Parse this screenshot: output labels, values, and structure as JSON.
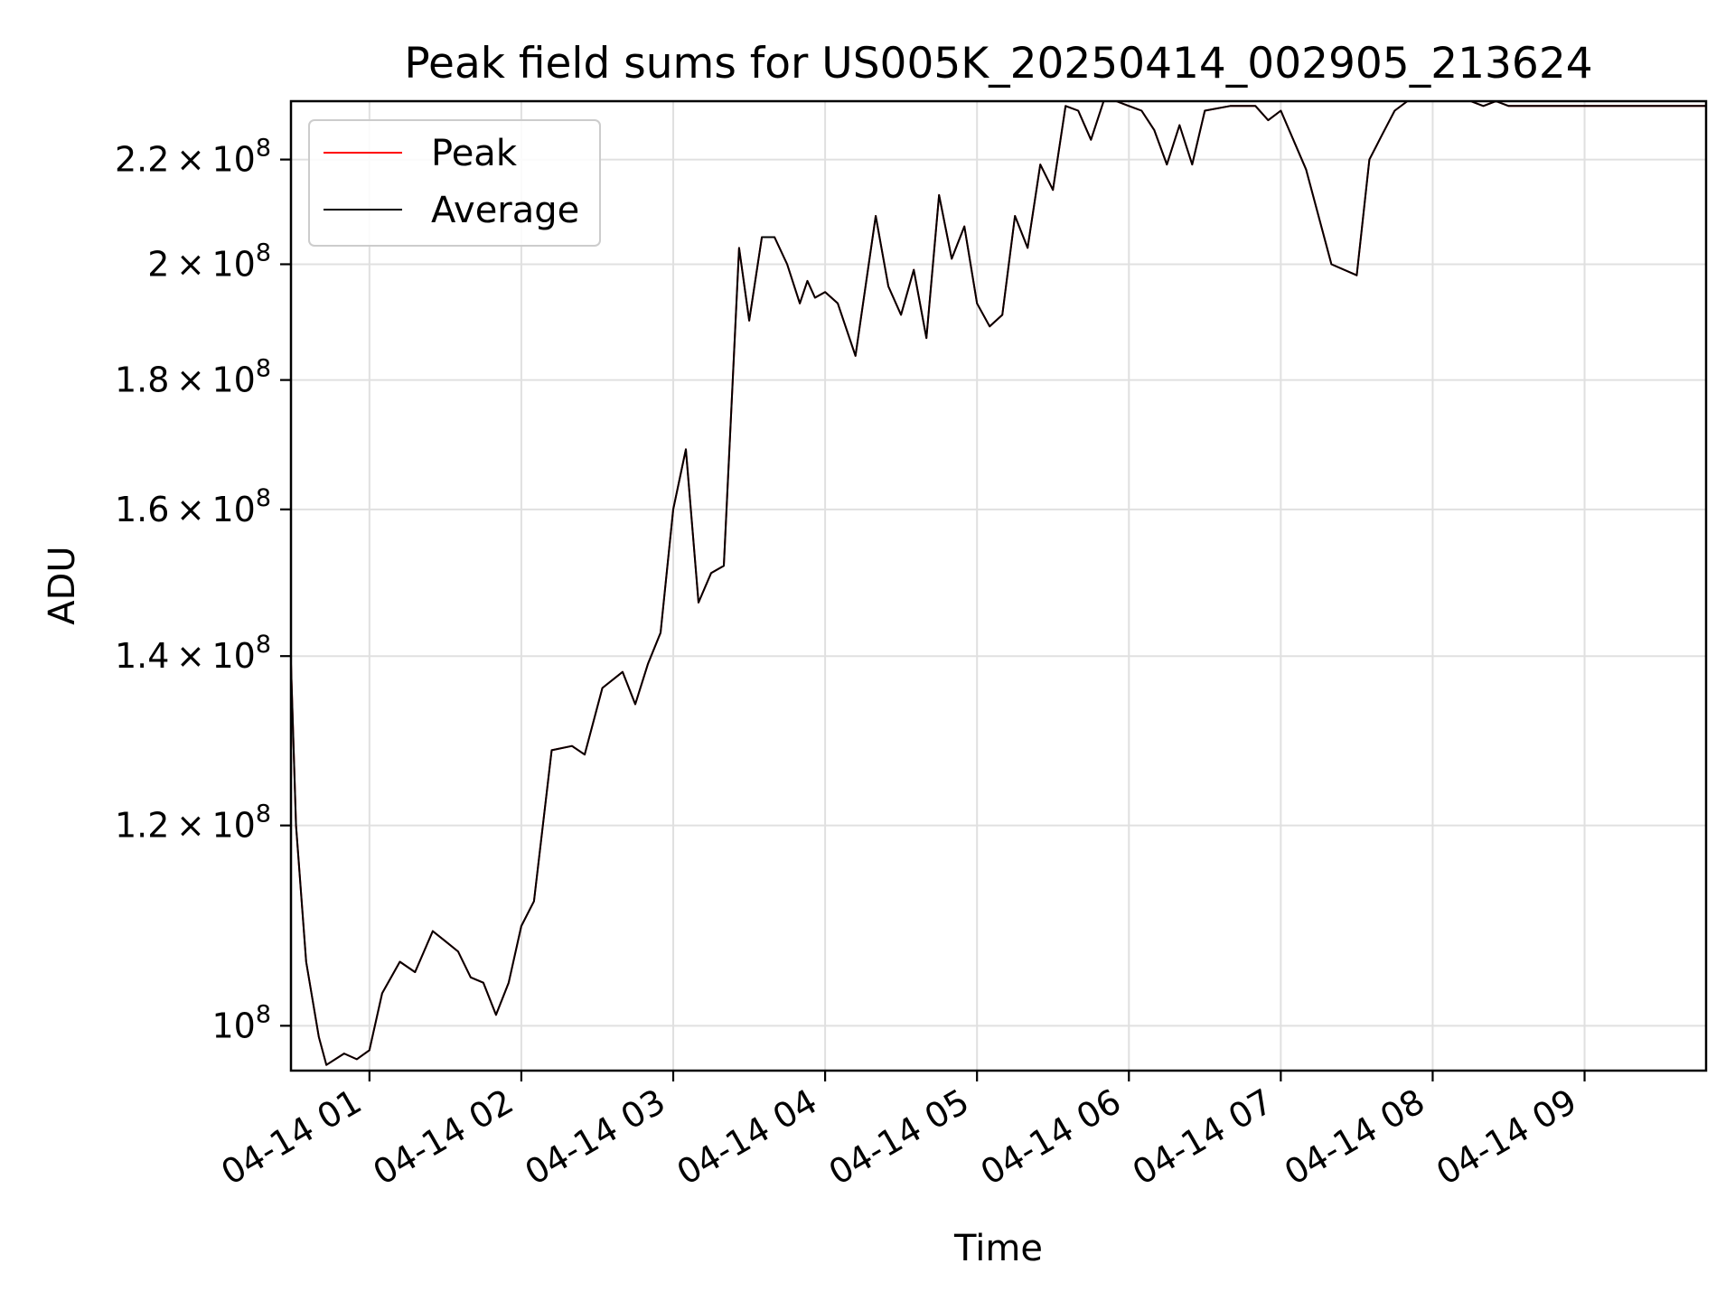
{
  "chart_data": {
    "type": "line",
    "title": "Peak field sums for US005K_20250414_002905_213624",
    "xlabel": "Time",
    "ylabel": "ADU",
    "y_scale": "log",
    "grid": true,
    "legend_position": "top-left",
    "x_range": [
      "04-14 00:29",
      "04-14 09:48"
    ],
    "ylim": [
      96000000,
      232000000
    ],
    "x_ticks": [
      {
        "time": "04-14 01:00",
        "label": "04-14 01"
      },
      {
        "time": "04-14 02:00",
        "label": "04-14 02"
      },
      {
        "time": "04-14 03:00",
        "label": "04-14 03"
      },
      {
        "time": "04-14 04:00",
        "label": "04-14 04"
      },
      {
        "time": "04-14 05:00",
        "label": "04-14 05"
      },
      {
        "time": "04-14 06:00",
        "label": "04-14 06"
      },
      {
        "time": "04-14 07:00",
        "label": "04-14 07"
      },
      {
        "time": "04-14 08:00",
        "label": "04-14 08"
      },
      {
        "time": "04-14 09:00",
        "label": "04-14 09"
      }
    ],
    "y_ticks": [
      {
        "value": 100000000,
        "mant": "",
        "exp": "8"
      },
      {
        "value": 120000000,
        "mant": "1.2",
        "exp": "8"
      },
      {
        "value": 140000000,
        "mant": "1.4",
        "exp": "8"
      },
      {
        "value": 160000000,
        "mant": "1.6",
        "exp": "8"
      },
      {
        "value": 180000000,
        "mant": "1.8",
        "exp": "8"
      },
      {
        "value": 200000000,
        "mant": "2",
        "exp": "8"
      },
      {
        "value": 220000000,
        "mant": "2.2",
        "exp": "8"
      }
    ],
    "times": [
      "04-14 00:29",
      "04-14 00:31",
      "04-14 00:35",
      "04-14 00:40",
      "04-14 00:43",
      "04-14 00:50",
      "04-14 00:55",
      "04-14 01:00",
      "04-14 01:05",
      "04-14 01:12",
      "04-14 01:18",
      "04-14 01:25",
      "04-14 01:30",
      "04-14 01:35",
      "04-14 01:40",
      "04-14 01:45",
      "04-14 01:50",
      "04-14 01:55",
      "04-14 02:00",
      "04-14 02:05",
      "04-14 02:12",
      "04-14 02:20",
      "04-14 02:25",
      "04-14 02:32",
      "04-14 02:40",
      "04-14 02:45",
      "04-14 02:50",
      "04-14 02:55",
      "04-14 03:00",
      "04-14 03:05",
      "04-14 03:10",
      "04-14 03:15",
      "04-14 03:20",
      "04-14 03:26",
      "04-14 03:30",
      "04-14 03:35",
      "04-14 03:40",
      "04-14 03:45",
      "04-14 03:50",
      "04-14 03:53",
      "04-14 03:56",
      "04-14 04:00",
      "04-14 04:05",
      "04-14 04:12",
      "04-14 04:20",
      "04-14 04:25",
      "04-14 04:30",
      "04-14 04:35",
      "04-14 04:40",
      "04-14 04:45",
      "04-14 04:50",
      "04-14 04:55",
      "04-14 05:00",
      "04-14 05:05",
      "04-14 05:10",
      "04-14 05:15",
      "04-14 05:20",
      "04-14 05:25",
      "04-14 05:30",
      "04-14 05:35",
      "04-14 05:40",
      "04-14 05:45",
      "04-14 05:50",
      "04-14 05:55",
      "04-14 06:00",
      "04-14 06:05",
      "04-14 06:10",
      "04-14 06:15",
      "04-14 06:20",
      "04-14 06:25",
      "04-14 06:30",
      "04-14 06:40",
      "04-14 06:50",
      "04-14 06:55",
      "04-14 07:00",
      "04-14 07:10",
      "04-14 07:20",
      "04-14 07:30",
      "04-14 07:35",
      "04-14 07:40",
      "04-14 07:45",
      "04-14 07:50",
      "04-14 07:55",
      "04-14 08:00",
      "04-14 08:10",
      "04-14 08:15",
      "04-14 08:20",
      "04-14 08:25",
      "04-14 08:30",
      "04-14 08:35",
      "04-14 08:40",
      "04-14 08:45",
      "04-14 08:50",
      "04-14 08:55",
      "04-14 09:00",
      "04-14 09:10",
      "04-14 09:20",
      "04-14 09:30",
      "04-14 09:40",
      "04-14 09:48"
    ],
    "series": [
      {
        "name": "Peak",
        "color": "#ff0000",
        "values": [
          139000000,
          120000000,
          106000000,
          99000000,
          96500000,
          97500000,
          97000000,
          97800000,
          103000000,
          106000000,
          105000000,
          109000000,
          108000000,
          107000000,
          104500000,
          104000000,
          101000000,
          104000000,
          109500000,
          112000000,
          128500000,
          129000000,
          128000000,
          136000000,
          138000000,
          134000000,
          139000000,
          143000000,
          160000000,
          169000000,
          147000000,
          151000000,
          152000000,
          203000000,
          190000000,
          205000000,
          205000000,
          200000000,
          193000000,
          197000000,
          194000000,
          195000000,
          193000000,
          184000000,
          209000000,
          196000000,
          191000000,
          199000000,
          187000000,
          213000000,
          201000000,
          207000000,
          193000000,
          189000000,
          191000000,
          209000000,
          203000000,
          219000000,
          214000000,
          231000000,
          230000000,
          224000000,
          232000000,
          232000000,
          231000000,
          230000000,
          226000000,
          219000000,
          227000000,
          219000000,
          230000000,
          231000000,
          231000000,
          228000000,
          230000000,
          218000000,
          200000000,
          198000000,
          220000000,
          225000000,
          230000000,
          232000000,
          232000000,
          232000000,
          232000000,
          232000000,
          231000000,
          232000000,
          231000000,
          231000000,
          231000000,
          231000000,
          231000000,
          231000000,
          231000000,
          231000000,
          231000000,
          231000000,
          231000000,
          231000000
        ]
      },
      {
        "name": "Average",
        "color": "#000000",
        "values": [
          139000000,
          120000000,
          106000000,
          99000000,
          96500000,
          97500000,
          97000000,
          97800000,
          103000000,
          106000000,
          105000000,
          109000000,
          108000000,
          107000000,
          104500000,
          104000000,
          101000000,
          104000000,
          109500000,
          112000000,
          128500000,
          129000000,
          128000000,
          136000000,
          138000000,
          134000000,
          139000000,
          143000000,
          160000000,
          169000000,
          147000000,
          151000000,
          152000000,
          203000000,
          190000000,
          205000000,
          205000000,
          200000000,
          193000000,
          197000000,
          194000000,
          195000000,
          193000000,
          184000000,
          209000000,
          196000000,
          191000000,
          199000000,
          187000000,
          213000000,
          201000000,
          207000000,
          193000000,
          189000000,
          191000000,
          209000000,
          203000000,
          219000000,
          214000000,
          231000000,
          230000000,
          224000000,
          232000000,
          232000000,
          231000000,
          230000000,
          226000000,
          219000000,
          227000000,
          219000000,
          230000000,
          231000000,
          231000000,
          228000000,
          230000000,
          218000000,
          200000000,
          198000000,
          220000000,
          225000000,
          230000000,
          232000000,
          232000000,
          232000000,
          232000000,
          232000000,
          231000000,
          232000000,
          231000000,
          231000000,
          231000000,
          231000000,
          231000000,
          231000000,
          231000000,
          231000000,
          231000000,
          231000000,
          231000000,
          231000000
        ]
      }
    ]
  }
}
